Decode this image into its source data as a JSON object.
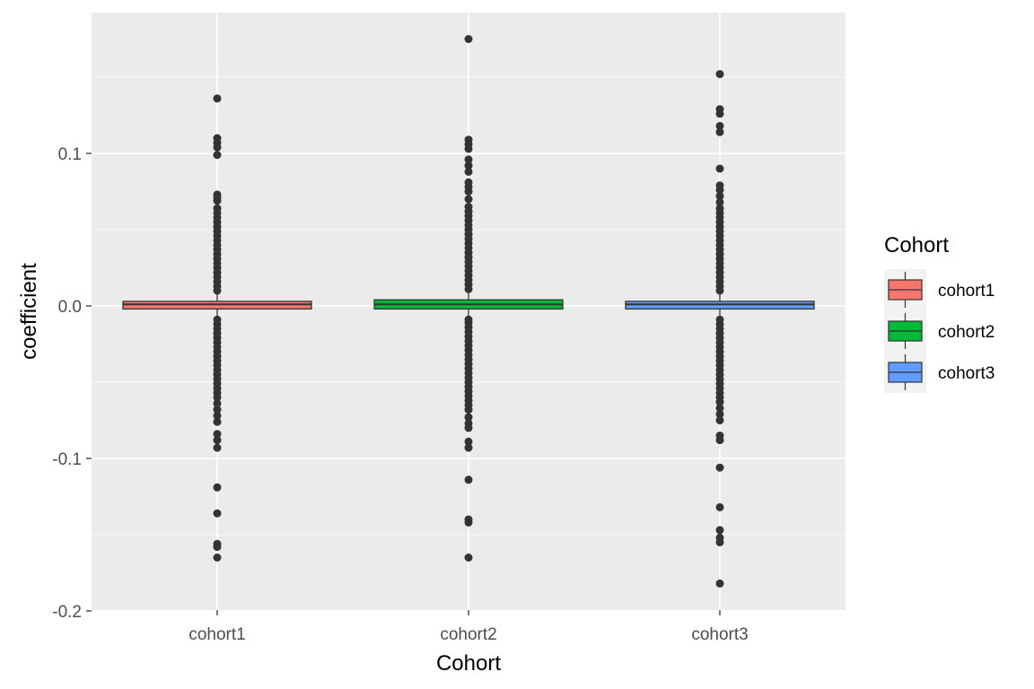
{
  "chart_data": {
    "type": "box",
    "xlabel": "Cohort",
    "ylabel": "coefficient",
    "ylim": [
      -0.2,
      0.18
    ],
    "yticks": [
      -0.2,
      -0.1,
      0.0,
      0.1
    ],
    "ytick_labels": [
      "-0.2",
      "-0.1",
      "0.0",
      "0.1"
    ],
    "categories": [
      "cohort1",
      "cohort2",
      "cohort3"
    ],
    "grid": true,
    "legend": {
      "title": "Cohort",
      "placement": "right"
    },
    "series": [
      {
        "name": "cohort1",
        "color": "#F8766D",
        "q1": -0.002,
        "median": 0.001,
        "q3": 0.003,
        "whisker_low": -0.008,
        "whisker_high": 0.009,
        "outliers_high": [
          0.136,
          0.11,
          0.107,
          0.104,
          0.099,
          0.073,
          0.071,
          0.069,
          0.064,
          0.061,
          0.058,
          0.055,
          0.052,
          0.049,
          0.046,
          0.043,
          0.04,
          0.037,
          0.034,
          0.031,
          0.028,
          0.025,
          0.022,
          0.019,
          0.016,
          0.013,
          0.01
        ],
        "outliers_low": [
          -0.165,
          -0.158,
          -0.156,
          -0.136,
          -0.119,
          -0.093,
          -0.088,
          -0.084,
          -0.076,
          -0.072,
          -0.068,
          -0.064,
          -0.06,
          -0.057,
          -0.054,
          -0.051,
          -0.048,
          -0.045,
          -0.042,
          -0.039,
          -0.036,
          -0.033,
          -0.03,
          -0.027,
          -0.024,
          -0.021,
          -0.018,
          -0.015,
          -0.012,
          -0.009
        ]
      },
      {
        "name": "cohort2",
        "color": "#00BA38",
        "q1": -0.002,
        "median": 0.001,
        "q3": 0.004,
        "whisker_low": -0.008,
        "whisker_high": 0.01,
        "outliers_high": [
          0.175,
          0.109,
          0.106,
          0.103,
          0.096,
          0.092,
          0.088,
          0.081,
          0.078,
          0.075,
          0.07,
          0.065,
          0.062,
          0.059,
          0.056,
          0.053,
          0.05,
          0.047,
          0.044,
          0.041,
          0.038,
          0.035,
          0.032,
          0.029,
          0.026,
          0.023,
          0.02,
          0.017,
          0.014,
          0.011
        ],
        "outliers_low": [
          -0.165,
          -0.142,
          -0.14,
          -0.114,
          -0.093,
          -0.089,
          -0.08,
          -0.077,
          -0.073,
          -0.068,
          -0.065,
          -0.062,
          -0.059,
          -0.056,
          -0.053,
          -0.05,
          -0.047,
          -0.044,
          -0.041,
          -0.038,
          -0.035,
          -0.032,
          -0.029,
          -0.026,
          -0.023,
          -0.02,
          -0.017,
          -0.014,
          -0.011,
          -0.009
        ]
      },
      {
        "name": "cohort3",
        "color": "#619CFF",
        "q1": -0.002,
        "median": 0.001,
        "q3": 0.003,
        "whisker_low": -0.008,
        "whisker_high": 0.009,
        "outliers_high": [
          0.152,
          0.129,
          0.126,
          0.118,
          0.114,
          0.09,
          0.079,
          0.076,
          0.072,
          0.068,
          0.064,
          0.061,
          0.058,
          0.055,
          0.052,
          0.049,
          0.046,
          0.043,
          0.04,
          0.037,
          0.034,
          0.031,
          0.028,
          0.025,
          0.022,
          0.019,
          0.016,
          0.013,
          0.01
        ],
        "outliers_low": [
          -0.182,
          -0.155,
          -0.152,
          -0.147,
          -0.132,
          -0.106,
          -0.088,
          -0.085,
          -0.075,
          -0.071,
          -0.067,
          -0.063,
          -0.06,
          -0.057,
          -0.054,
          -0.051,
          -0.048,
          -0.045,
          -0.042,
          -0.039,
          -0.036,
          -0.033,
          -0.03,
          -0.027,
          -0.024,
          -0.021,
          -0.018,
          -0.015,
          -0.012,
          -0.009
        ]
      }
    ]
  }
}
